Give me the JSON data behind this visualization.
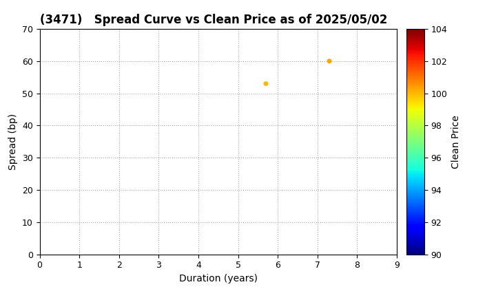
{
  "title": "(3471)   Spread Curve vs Clean Price as of 2025/05/02",
  "xlabel": "Duration (years)",
  "ylabel": "Spread (bp)",
  "colorbar_label": "Clean Price",
  "xlim": [
    0,
    9
  ],
  "ylim": [
    0,
    70
  ],
  "xticks": [
    0,
    1,
    2,
    3,
    4,
    5,
    6,
    7,
    8,
    9
  ],
  "yticks": [
    0,
    10,
    20,
    30,
    40,
    50,
    60,
    70
  ],
  "colorbar_min": 90,
  "colorbar_max": 104,
  "colorbar_ticks": [
    90,
    92,
    94,
    96,
    98,
    100,
    102,
    104
  ],
  "data_points": [
    {
      "duration": 5.7,
      "spread": 53,
      "clean_price": 100.0
    },
    {
      "duration": 7.3,
      "spread": 60,
      "clean_price": 100.3
    }
  ],
  "marker_size": 25,
  "background_color": "#ffffff",
  "grid_color": "#aaaaaa",
  "title_fontsize": 12,
  "label_fontsize": 10,
  "figwidth": 7.2,
  "figheight": 4.2,
  "dpi": 100
}
